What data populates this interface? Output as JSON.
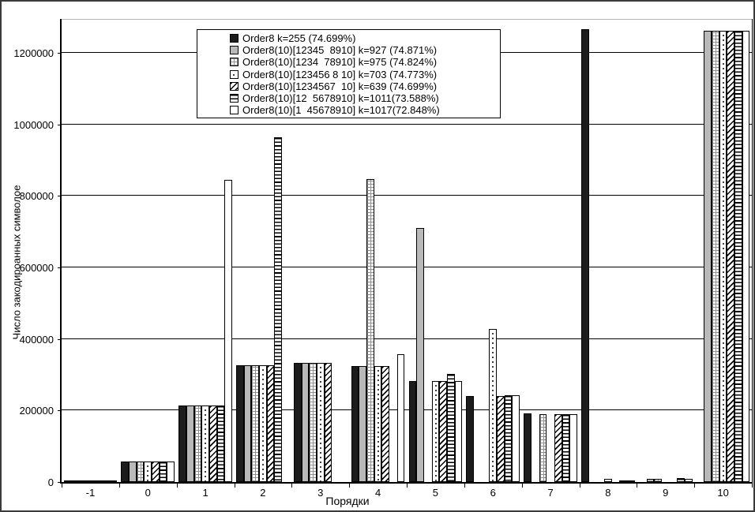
{
  "y_axis": {
    "label": "Число закодироанных символое",
    "tick_values": [
      0,
      200000,
      400000,
      600000,
      800000,
      1000000,
      1200000
    ]
  },
  "x_axis": {
    "label": "Порядки",
    "categories": [
      "-1",
      "0",
      "1",
      "2",
      "3",
      "4",
      "5",
      "6",
      "7",
      "8",
      "9",
      "10"
    ]
  },
  "colors": {
    "solid_black": "#1c1c1c",
    "solid_gray": "#b9b9b9",
    "pattern_ink": "#000000",
    "background": "#ffffff"
  },
  "chart_data": {
    "type": "bar",
    "title": "",
    "xlabel": "Порядки",
    "ylabel": "Число закодироанных символое",
    "ylim": [
      0,
      1300000
    ],
    "grid": true,
    "legend_position": "top-center",
    "categories": [
      -1,
      0,
      1,
      2,
      3,
      4,
      5,
      6,
      7,
      8,
      9,
      10
    ],
    "series": [
      {
        "name": "Order8 k=255 (74.699%)",
        "pattern": "black",
        "values": [
          1500,
          57000,
          214000,
          326000,
          333000,
          325000,
          283000,
          240000,
          192000,
          1266000,
          0,
          0
        ]
      },
      {
        "name": "Order8(10)[12345  8910] k=927 (74.871%)",
        "pattern": "gray",
        "values": [
          1500,
          57000,
          214000,
          326000,
          333000,
          325000,
          711000,
          0,
          0,
          0,
          9000,
          1262000
        ]
      },
      {
        "name": "Order8(10)[1234  78910] k=975 (74.824%)",
        "pattern": "grid",
        "values": [
          1500,
          57000,
          214000,
          326000,
          333000,
          846000,
          0,
          0,
          190000,
          0,
          9000,
          1262000
        ]
      },
      {
        "name": "Order8(10)[123456 8 10] k=703 (74.773%)",
        "pattern": "dotted",
        "values": [
          1500,
          57000,
          214000,
          326000,
          333000,
          325000,
          283000,
          427000,
          0,
          8000,
          0,
          1262000
        ]
      },
      {
        "name": "Order8(10)[1234567  10] k=639 (74.699%)",
        "pattern": "diagonal",
        "values": [
          1500,
          57000,
          214000,
          326000,
          333000,
          325000,
          283000,
          240000,
          190000,
          0,
          0,
          1262000
        ]
      },
      {
        "name": "Order8(10)[12  5678910] k=1011(73.588%)",
        "pattern": "hlines",
        "values": [
          1500,
          57000,
          214000,
          963000,
          0,
          0,
          303000,
          242000,
          189000,
          1000,
          10000,
          1262000
        ]
      },
      {
        "name": "Order8(10)[1  45678910] k=1017(72.848%)",
        "pattern": "white",
        "values": [
          1500,
          57000,
          844000,
          0,
          0,
          358000,
          283000,
          242000,
          190000,
          1000,
          8000,
          1262000
        ]
      }
    ]
  }
}
